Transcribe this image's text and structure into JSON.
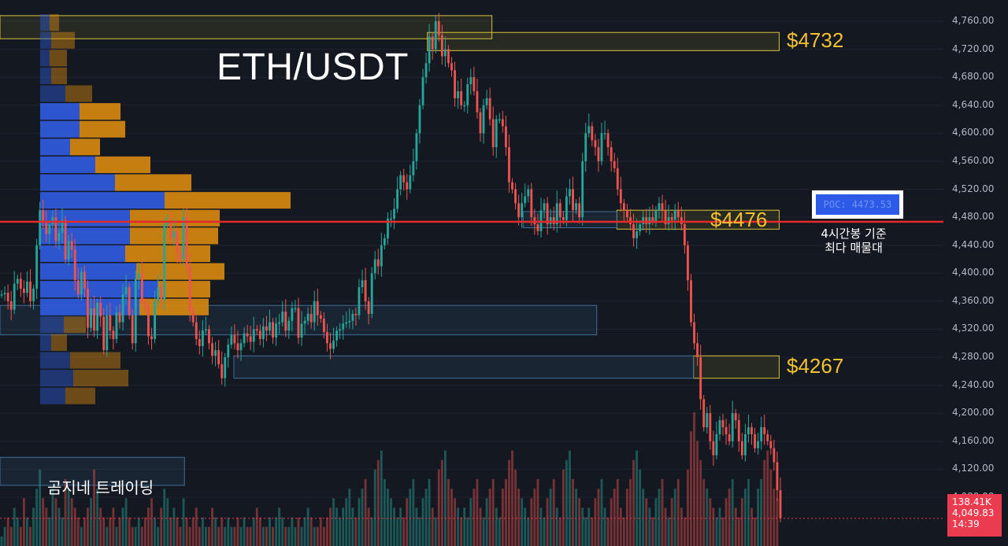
{
  "chart_data": {
    "type": "candlestick",
    "title": "ETH/USDT",
    "ylim": [
      4040,
      4775
    ],
    "y_ticks": [
      "4,760.00",
      "4,720.00",
      "4,680.00",
      "4,640.00",
      "4,600.00",
      "4,560.00",
      "4,520.00",
      "4,480.00",
      "4,440.00",
      "4,400.00",
      "4,360.00",
      "4,320.00",
      "4,280.00",
      "4,240.00",
      "4,200.00",
      "4,160.00",
      "4,120.00",
      "4,080.00"
    ],
    "levels": [
      {
        "label": "$4732",
        "value": 4732
      },
      {
        "label": "$4476",
        "value": 4476
      },
      {
        "label": "$4267",
        "value": 4267
      }
    ],
    "poc": {
      "label": "POC: 4473.53",
      "value": 4473.53,
      "color": "#e32b2b"
    },
    "poc_note": [
      "4시간봉 기준",
      "최다 매물대"
    ],
    "price_tag": {
      "volume": "138.41K",
      "price": "4,049.83",
      "countdown": "14:39"
    },
    "volume_profile": {
      "start_price": 4770,
      "step": 25.4,
      "rows": [
        {
          "buy": 12,
          "sell": 12
        },
        {
          "buy": 14,
          "sell": 30
        },
        {
          "buy": 12,
          "sell": 22
        },
        {
          "buy": 14,
          "sell": 20
        },
        {
          "buy": 32,
          "sell": 34
        },
        {
          "buy": 50,
          "sell": 52
        },
        {
          "buy": 50,
          "sell": 58
        },
        {
          "buy": 38,
          "sell": 38
        },
        {
          "buy": 70,
          "sell": 70
        },
        {
          "buy": 95,
          "sell": 97
        },
        {
          "buy": 158,
          "sell": 160
        },
        {
          "buy": 114,
          "sell": 114
        },
        {
          "buy": 114,
          "sell": 112
        },
        {
          "buy": 108,
          "sell": 108
        },
        {
          "buy": 122,
          "sell": 112
        },
        {
          "buy": 150,
          "sell": 66
        },
        {
          "buy": 126,
          "sell": 88
        },
        {
          "buy": 30,
          "sell": 28
        },
        {
          "buy": 14,
          "sell": 20
        },
        {
          "buy": 38,
          "sell": 64
        },
        {
          "buy": 42,
          "sell": 70
        },
        {
          "buy": 32,
          "sell": 38
        }
      ],
      "colors": {
        "buy": "#2e5ad8",
        "sell": "#d9890f"
      }
    },
    "zones": [
      {
        "kind": "yellow",
        "x0": 0.0,
        "x1": 0.488,
        "y_top": 4768,
        "y_bot": 4735
      },
      {
        "kind": "yellow",
        "x0": 0.424,
        "x1": 0.773,
        "y_top": 4744,
        "y_bot": 4718
      },
      {
        "kind": "yellow",
        "x0": 0.612,
        "x1": 0.773,
        "y_top": 4490,
        "y_bot": 4463
      },
      {
        "kind": "yellow",
        "x0": 0.688,
        "x1": 0.773,
        "y_top": 4282,
        "y_bot": 4250
      },
      {
        "kind": "blue",
        "x0": 0.0,
        "x1": 0.592,
        "y_top": 4354,
        "y_bot": 4312
      },
      {
        "kind": "blue",
        "x0": 0.232,
        "x1": 0.688,
        "y_top": 4282,
        "y_bot": 4250
      },
      {
        "kind": "blue",
        "x0": 0.519,
        "x1": 0.612,
        "y_top": 4488,
        "y_bot": 4465
      },
      {
        "kind": "blue",
        "x0": 0.0,
        "x1": 0.183,
        "y_top": 4137,
        "y_bot": 4097
      }
    ],
    "series": [
      {
        "name": "price",
        "values": [
          4370,
          4372,
          4360,
          4348,
          4385,
          4392,
          4378,
          4372,
          4388,
          4360,
          4378,
          4440,
          4490,
          4472,
          4456,
          4470,
          4480,
          4446,
          4458,
          4476,
          4420,
          4446,
          4434,
          4390,
          4370,
          4402,
          4378,
          4322,
          4350,
          4318,
          4358,
          4338,
          4290,
          4340,
          4318,
          4306,
          4344,
          4330,
          4370,
          4380,
          4340,
          4300,
          4392,
          4400,
          4358,
          4354,
          4310,
          4306,
          4360,
          4380,
          4362,
          4470,
          4472,
          4450,
          4460,
          4430,
          4420,
          4480,
          4410,
          4346,
          4330,
          4306,
          4296,
          4318,
          4320,
          4300,
          4282,
          4290,
          4270,
          4250,
          4280,
          4298,
          4312,
          4300,
          4290,
          4300,
          4314,
          4310,
          4302,
          4320,
          4318,
          4306,
          4324,
          4318,
          4330,
          4308,
          4328,
          4330,
          4345,
          4318,
          4332,
          4350,
          4350,
          4308,
          4328,
          4332,
          4342,
          4330,
          4360,
          4340,
          4335,
          4316,
          4300,
          4292,
          4304,
          4318,
          4320,
          4328,
          4330,
          4332,
          4342,
          4340,
          4380,
          4390,
          4360,
          4342,
          4400,
          4420,
          4410,
          4440,
          4450,
          4478,
          4478,
          4492,
          4520,
          4540,
          4530,
          4520,
          4540,
          4560,
          4600,
          4640,
          4680,
          4700,
          4738,
          4720,
          4760,
          4740,
          4710,
          4720,
          4700,
          4690,
          4650,
          4660,
          4640,
          4640,
          4670,
          4680,
          4660,
          4630,
          4600,
          4640,
          4650,
          4620,
          4580,
          4620,
          4620,
          4610,
          4580,
          4530,
          4520,
          4500,
          4480,
          4500,
          4510,
          4520,
          4480,
          4470,
          4460,
          4490,
          4500,
          4470,
          4480,
          4470,
          4500,
          4480,
          4476,
          4510,
          4520,
          4490,
          4500,
          4480,
          4560,
          4600,
          4610,
          4590,
          4580,
          4560,
          4600,
          4600,
          4580,
          4560,
          4550,
          4520,
          4500,
          4490,
          4480,
          4470,
          4450,
          4460,
          4470,
          4480,
          4470,
          4480,
          4475,
          4490,
          4500,
          4490,
          4470,
          4480,
          4476,
          4490,
          4480,
          4470,
          4440,
          4390,
          4330,
          4300,
          4280,
          4220,
          4180,
          4200,
          4160,
          4140,
          4170,
          4190,
          4180,
          4170,
          4160,
          4200,
          4190,
          4160,
          4140,
          4170,
          4180,
          4170,
          4150,
          4160,
          4180,
          4170,
          4160,
          4150,
          4130,
          4090,
          4050
        ]
      },
      {
        "name": "volume",
        "values": [
          1,
          2,
          3,
          2,
          4,
          3,
          2,
          5,
          3,
          2,
          4,
          6,
          8,
          5,
          4,
          3,
          6,
          5,
          4,
          3,
          7,
          6,
          5,
          4,
          3,
          2,
          3,
          4,
          5,
          8,
          6,
          4,
          3,
          2,
          3,
          4,
          2,
          3,
          4,
          5,
          3,
          2,
          2,
          3,
          2,
          3,
          4,
          5,
          3,
          2,
          4,
          6,
          5,
          3,
          4,
          3,
          2,
          5,
          3,
          2,
          3,
          4,
          2,
          3,
          2,
          2,
          4,
          3,
          2,
          3,
          2,
          3,
          2,
          2,
          3,
          2,
          3,
          2,
          2,
          3,
          4,
          3,
          2,
          2,
          3,
          2,
          3,
          4,
          3,
          2,
          2,
          3,
          2,
          3,
          2,
          3,
          4,
          3,
          2,
          2,
          3,
          2,
          3,
          4,
          5,
          4,
          3,
          4,
          5,
          6,
          4,
          3,
          5,
          6,
          7,
          4,
          3,
          8,
          9,
          10,
          7,
          6,
          5,
          4,
          3,
          4,
          3,
          5,
          6,
          7,
          4,
          3,
          5,
          6,
          7,
          4,
          3,
          8,
          9,
          10,
          7,
          6,
          5,
          4,
          3,
          4,
          3,
          5,
          6,
          7,
          4,
          3,
          5,
          6,
          7,
          4,
          3,
          6,
          7,
          9,
          10,
          8,
          6,
          5,
          4,
          3,
          5,
          6,
          7,
          4,
          3,
          5,
          6,
          7,
          4,
          3,
          8,
          9,
          10,
          7,
          6,
          5,
          4,
          3,
          4,
          3,
          5,
          6,
          7,
          4,
          3,
          5,
          6,
          7,
          4,
          3,
          6,
          7,
          9,
          10,
          8,
          6,
          5,
          4,
          3,
          5,
          6,
          7,
          4,
          3,
          5,
          6,
          7,
          4,
          3,
          8,
          12,
          14,
          11,
          9,
          7,
          6,
          5,
          4,
          3,
          4,
          3,
          5,
          6,
          7,
          4,
          3,
          5,
          6,
          7,
          4,
          3,
          6,
          7,
          9,
          10,
          8,
          6,
          5
        ]
      }
    ],
    "colors": {
      "up": "#26a69a",
      "down": "#ef5350",
      "background": "#141821",
      "grid": "#20242e"
    }
  },
  "watermark": "곰지네 트레이딩"
}
